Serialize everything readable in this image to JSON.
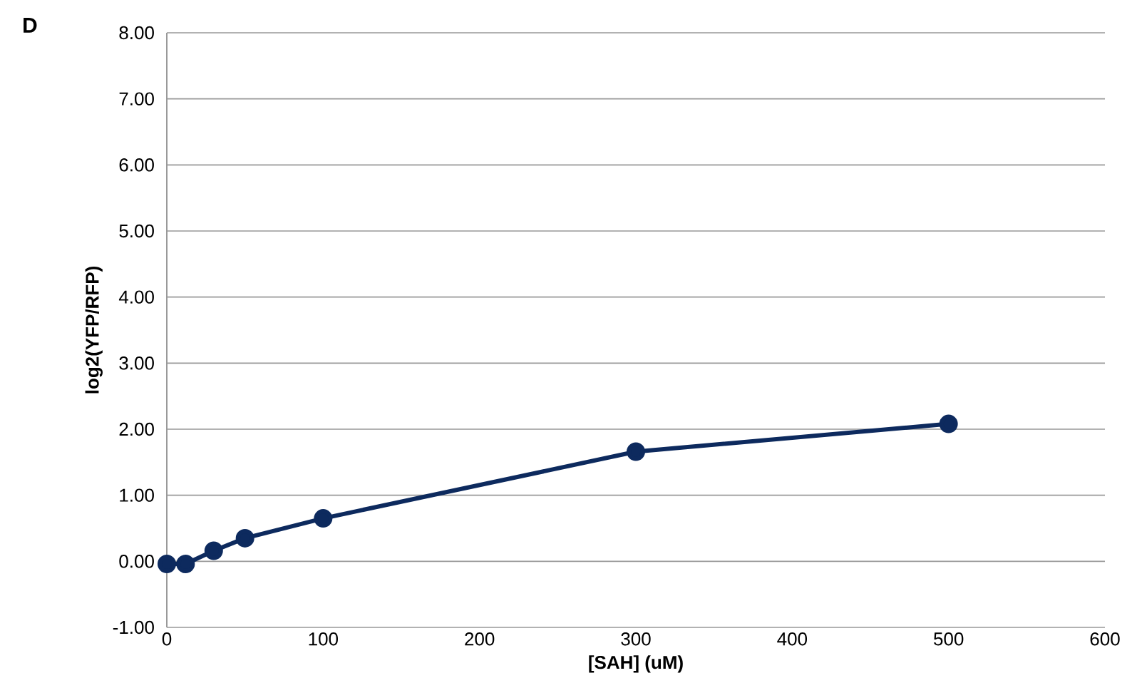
{
  "chart_data": {
    "type": "line",
    "xlabel": "[SAH] (uM)",
    "ylabel": "log2(YFP/RFP)",
    "annotations": [
      "D"
    ],
    "x": [
      0,
      12,
      30,
      50,
      100,
      300,
      500
    ],
    "series": [
      {
        "color": "#0d2a5e",
        "values": [
          -0.04,
          -0.04,
          0.16,
          0.35,
          0.65,
          1.66,
          2.08
        ]
      }
    ],
    "xlim": [
      0,
      600
    ],
    "xticks": [
      0,
      100,
      200,
      300,
      400,
      500,
      600
    ],
    "ylim": [
      -1,
      8
    ],
    "yticks": [
      {
        "value": -1,
        "label": "-1.00"
      },
      {
        "value": 0,
        "label": "0.00"
      },
      {
        "value": 1,
        "label": "1.00"
      },
      {
        "value": 2,
        "label": "2.00"
      },
      {
        "value": 3,
        "label": "3.00"
      },
      {
        "value": 4,
        "label": "4.00"
      },
      {
        "value": 5,
        "label": "5.00"
      },
      {
        "value": 6,
        "label": "6.00"
      },
      {
        "value": 7,
        "label": "7.00"
      },
      {
        "value": 8,
        "label": "8.00"
      }
    ],
    "grid": "y",
    "marker": "circle",
    "line_style": "solid"
  }
}
